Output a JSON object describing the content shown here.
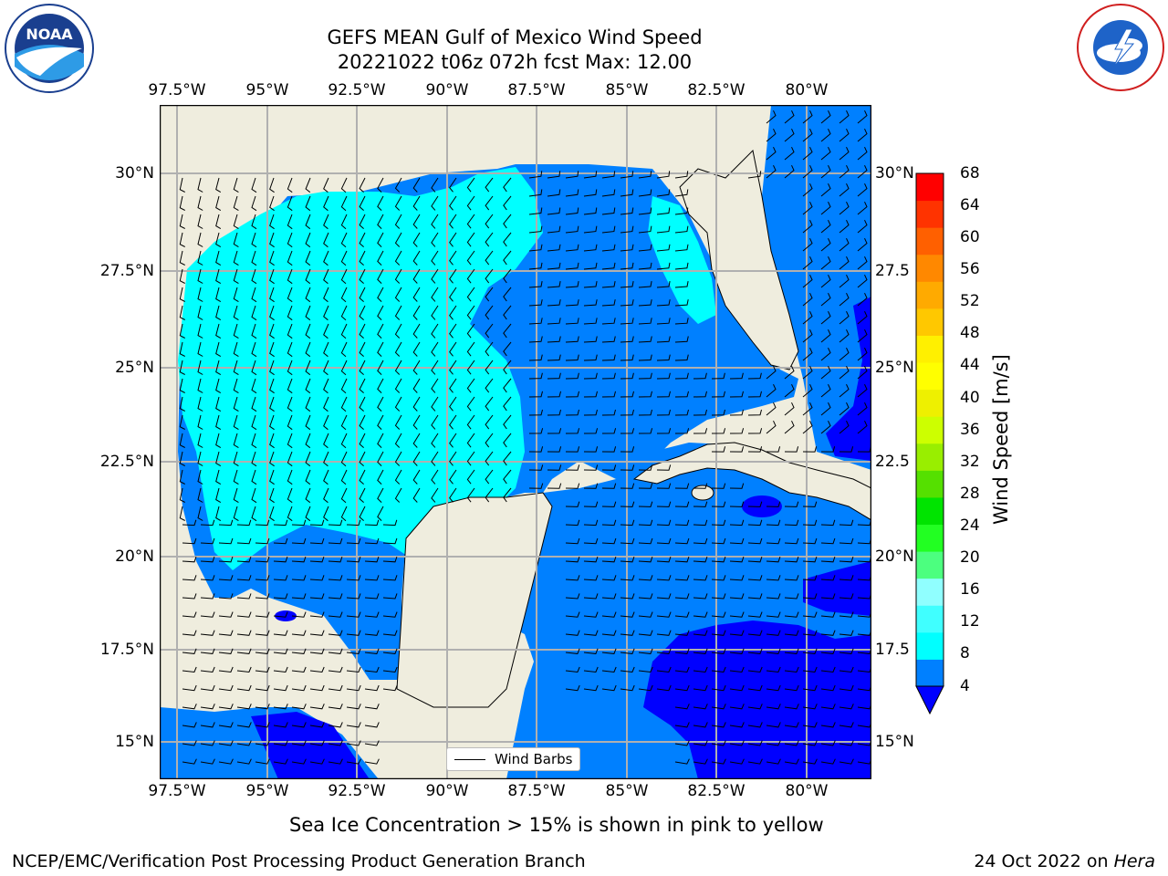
{
  "header": {
    "title_line1": "GEFS MEAN Gulf of Mexico Wind Speed",
    "title_line2": "20221022 t06z 072h fcst   Max: 12.00"
  },
  "logos": {
    "left": "NOAA",
    "right": "NATIONAL WEATHER SERVICE"
  },
  "map": {
    "lon_labels": [
      "97.5°W",
      "95°W",
      "92.5°W",
      "90°W",
      "87.5°W",
      "85°W",
      "82.5°W",
      "80°W"
    ],
    "lat_labels": [
      "30°N",
      "27.5°N",
      "25°N",
      "22.5°N",
      "20°N",
      "17.5°N",
      "15°N"
    ],
    "lat_labels_right": [
      "30°N",
      "27.5",
      "25°N",
      "22.5",
      "20°N",
      "17.5",
      "15°N"
    ],
    "legend_label": "Wind Barbs",
    "colors": {
      "land": "#efedde",
      "ocean_4_8": "#0080ff",
      "ocean_8_12": "#00ffff",
      "ocean_lt_4": "#0000ff",
      "grid": "#b0b0b0"
    }
  },
  "colorbar": {
    "title": "Wind Speed [m/s]",
    "tick_labels": [
      "68",
      "64",
      "60",
      "56",
      "52",
      "48",
      "44",
      "40",
      "36",
      "32",
      "28",
      "24",
      "20",
      "16",
      "12",
      "8",
      "4"
    ],
    "colors": [
      "#0000ff",
      "#0080ff",
      "#00ffff",
      "#40ffff",
      "#90ffff",
      "#4cff7f",
      "#22ff22",
      "#00e400",
      "#55e000",
      "#99ee00",
      "#cdff00",
      "#eef000",
      "#ffff00",
      "#fff000",
      "#ffc800",
      "#ffaa00",
      "#ff8800",
      "#ff6000",
      "#ff3300",
      "#ff0000"
    ]
  },
  "footer": {
    "note": "Sea Ice Concentration > 15% is shown in pink to yellow",
    "credit": "NCEP/EMC/Verification Post Processing Product Generation Branch",
    "date": "24 Oct 2022 on",
    "host": "Hera"
  }
}
